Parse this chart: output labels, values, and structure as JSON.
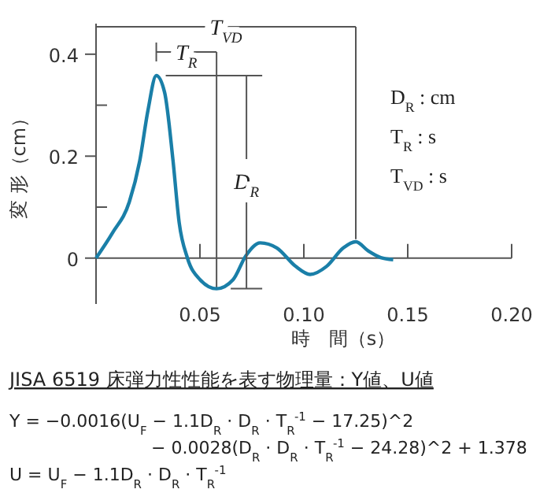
{
  "chart_data": {
    "type": "line",
    "xlabel": "時　間（s）",
    "ylabel": "変 形（cm）",
    "x": [
      0,
      0.008,
      0.016,
      0.021,
      0.025,
      0.029,
      0.033,
      0.037,
      0.04,
      0.044,
      0.05,
      0.058,
      0.066,
      0.072,
      0.079,
      0.087,
      0.096,
      0.103,
      0.111,
      0.119,
      0.125,
      0.131,
      0.137,
      0.143
    ],
    "series": [
      {
        "color": "#1a7fa8",
        "values": [
          0,
          0.05,
          0.11,
          0.19,
          0.29,
          0.358,
          0.325,
          0.193,
          0.07,
          0,
          -0.042,
          -0.06,
          -0.042,
          0.004,
          0.03,
          0.02,
          -0.016,
          -0.032,
          -0.016,
          0.02,
          0.032,
          0.014,
          0.001,
          -0.003
        ]
      }
    ],
    "xlim": [
      0,
      0.2
    ],
    "xticks": [
      0.05,
      {
        "value": 0.1,
        "label": "0.10"
      },
      0.15,
      {
        "value": 0.2,
        "label": "0.20"
      }
    ],
    "ylim": [
      -0.09,
      0.46
    ],
    "yticks": [
      0,
      {
        "value": 0.1,
        "label": null
      },
      0.2,
      {
        "value": 0.3,
        "label": null
      },
      0.4
    ],
    "marker": "none",
    "line_style": "solid",
    "ref_lines": [
      {
        "axis": "x",
        "value": 0.058,
        "label": null
      },
      {
        "axis": "x",
        "value": 0.125,
        "label": null
      }
    ],
    "annotations": [
      "T$_{VD}$",
      "T$_{R}$",
      "D$_{R}$",
      "D$_{R}$ : cm",
      "T$_{R}$ : s",
      "T$_{VD}$ : s",
      "JISA 6519 床弾力性性能を表す物理量：Y値、U値",
      "Y = −0.0016(U$_{F}$ − 1.1D$_{R}$ · D$_{R}$ · T$_{R}$$^{-1}$ − 17.25)^2",
      "− 0.0028(D$_{R}$ · D$_{R}$ · T$_{R}$$^{-1}$ − 24.28)^2 + 1.378",
      "U = U$_{F}$ − 1.1D$_{R}$ · D$_{R}$ · T$_{R}$$^{-1}$"
    ]
  }
}
